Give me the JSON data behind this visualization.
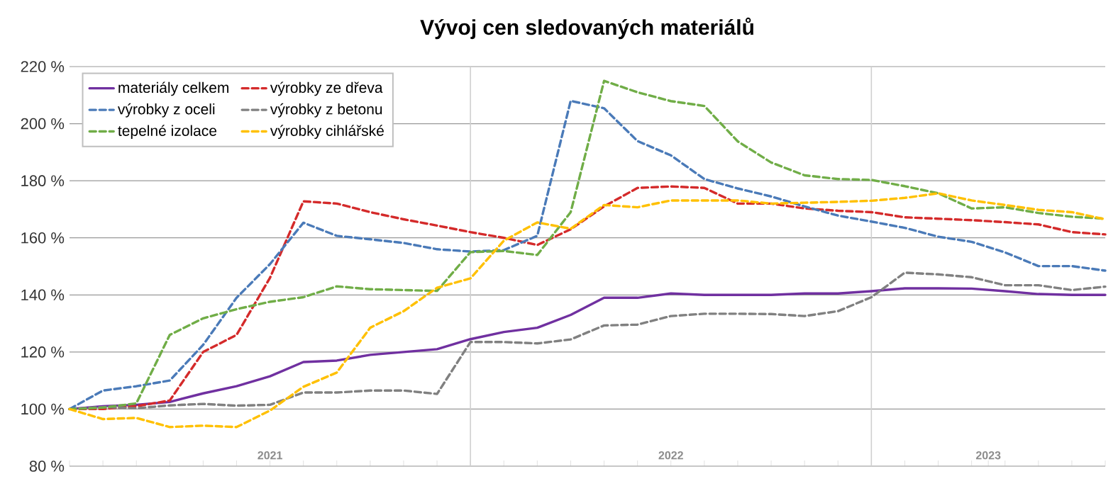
{
  "chart_data": {
    "type": "line",
    "title": "Vývoj cen sledovaných materiálů",
    "x": [
      "2021-01",
      "2021-02",
      "2021-03",
      "2021-04",
      "2021-05",
      "2021-06",
      "2021-07",
      "2021-08",
      "2021-09",
      "2021-10",
      "2021-11",
      "2021-12",
      "2022-01",
      "2022-02",
      "2022-03",
      "2022-04",
      "2022-05",
      "2022-06",
      "2022-07",
      "2022-08",
      "2022-09",
      "2022-10",
      "2022-11",
      "2022-12",
      "2023-01",
      "2023-02",
      "2023-03",
      "2023-04",
      "2023-05",
      "2023-06",
      "2023-07",
      "2023-08"
    ],
    "series": [
      {
        "name": "materiály celkem",
        "color": "#7030a0",
        "line_style": "solid",
        "values": [
          100,
          101,
          101.5,
          102.5,
          105.5,
          108,
          111.5,
          116.5,
          117,
          119,
          120,
          121,
          124.5,
          127,
          128.5,
          133,
          139,
          139,
          140.5,
          140,
          140,
          140,
          140.5,
          140.5,
          141.3,
          142.3,
          142.3,
          142.2,
          141.3,
          140.3,
          140,
          140
        ]
      },
      {
        "name": "výrobky ze dřeva",
        "color": "#d42a2a",
        "line_style": "dashed",
        "values": [
          100,
          100,
          101,
          103,
          120,
          126,
          146,
          172.8,
          172,
          169,
          166.5,
          164.3,
          162,
          160,
          157.5,
          163,
          171,
          177.5,
          178,
          177.5,
          172,
          172,
          170.3,
          169.5,
          169,
          167.2,
          166.7,
          166.2,
          165.5,
          164.7,
          162,
          161.2
        ]
      },
      {
        "name": "výrobky z oceli",
        "color": "#4a7ab8",
        "line_style": "dashed",
        "values": [
          100,
          106.5,
          108,
          110,
          122.5,
          139,
          150.8,
          165.3,
          160.7,
          159.5,
          158.2,
          156,
          155.2,
          155.7,
          160.7,
          208,
          205.4,
          193.9,
          188.9,
          180.6,
          177.3,
          174.5,
          171,
          167.8,
          165.7,
          163.5,
          160.4,
          158.6,
          154.9,
          150.1,
          150.1,
          148.5
        ]
      },
      {
        "name": "výrobky z betonu",
        "color": "#808080",
        "line_style": "dashed",
        "values": [
          100,
          100.7,
          100.3,
          101.3,
          101.8,
          101.2,
          101.5,
          105.8,
          105.8,
          106.5,
          106.5,
          105.3,
          123.5,
          123.5,
          123,
          124.4,
          129.3,
          129.6,
          132.6,
          133.4,
          133.4,
          133.3,
          132.6,
          134.3,
          139.2,
          147.8,
          147.2,
          146.2,
          143.4,
          143.4,
          141.7,
          142.9
        ]
      },
      {
        "name": "tepelné izolace",
        "color": "#70ad47",
        "line_style": "dashed",
        "values": [
          100,
          100.5,
          102,
          126,
          131.8,
          135,
          137.6,
          139.2,
          143,
          142,
          141.7,
          141.4,
          155,
          155.4,
          154,
          169,
          215,
          211,
          207.9,
          206.2,
          193.8,
          186.4,
          181.9,
          180.6,
          180.3,
          178.1,
          175.6,
          170.3,
          170.7,
          168.7,
          167.4,
          166.7
        ]
      },
      {
        "name": "výrobky cihlářské",
        "color": "#ffc000",
        "line_style": "dashed",
        "values": [
          100,
          96.5,
          96.9,
          93.7,
          94.2,
          93.7,
          99.5,
          107.8,
          112.8,
          128.5,
          134.3,
          142.5,
          145.8,
          159,
          165.4,
          163.2,
          171.5,
          170.7,
          173.1,
          173.1,
          173.1,
          172,
          172.3,
          172.6,
          173,
          174,
          175.6,
          173.1,
          171.5,
          169.8,
          169,
          166.5
        ]
      }
    ],
    "xlim": [
      "2021-01",
      "2023-08"
    ],
    "xticks": [
      {
        "value": "2021-01",
        "label": null
      },
      {
        "value": "2021-02",
        "label": null
      },
      {
        "value": "2021-03",
        "label": null
      },
      {
        "value": "2021-04",
        "label": null
      },
      {
        "value": "2021-05",
        "label": null
      },
      {
        "value": "2021-06",
        "label": null
      },
      {
        "value": "2021-07",
        "label": "2021"
      },
      {
        "value": "2021-08",
        "label": null
      },
      {
        "value": "2021-09",
        "label": null
      },
      {
        "value": "2021-10",
        "label": null
      },
      {
        "value": "2021-11",
        "label": null
      },
      {
        "value": "2021-12",
        "label": null
      },
      {
        "value": "2022-01",
        "label": null
      },
      {
        "value": "2022-02",
        "label": null
      },
      {
        "value": "2022-03",
        "label": null
      },
      {
        "value": "2022-04",
        "label": null
      },
      {
        "value": "2022-05",
        "label": null
      },
      {
        "value": "2022-06",
        "label": null
      },
      {
        "value": "2022-07",
        "label": "2022"
      },
      {
        "value": "2022-08",
        "label": null
      },
      {
        "value": "2022-09",
        "label": null
      },
      {
        "value": "2022-10",
        "label": null
      },
      {
        "value": "2022-11",
        "label": null
      },
      {
        "value": "2022-12",
        "label": null
      },
      {
        "value": "2023-01",
        "label": null
      },
      {
        "value": "2023-02",
        "label": null
      },
      {
        "value": "2023-03",
        "label": null
      },
      {
        "value": "2023-04",
        "label": null
      },
      {
        "value": "2023-04-16",
        "label": "2023"
      },
      {
        "value": "2023-05",
        "label": null
      },
      {
        "value": "2023-06",
        "label": null
      },
      {
        "value": "2023-07",
        "label": null
      },
      {
        "value": "2023-08",
        "label": null
      }
    ],
    "ylim": [
      80,
      220
    ],
    "yticks": [
      {
        "value": 80,
        "label": "80 %"
      },
      {
        "value": 100,
        "label": "100 %"
      },
      {
        "value": 120,
        "label": "120 %"
      },
      {
        "value": 140,
        "label": "140 %"
      },
      {
        "value": 160,
        "label": "160 %"
      },
      {
        "value": 180,
        "label": "180 %"
      },
      {
        "value": 200,
        "label": "200 %"
      },
      {
        "value": 220,
        "label": "220 %"
      }
    ],
    "ref_lines": [
      {
        "axis": "x",
        "value": "2022-01",
        "color": "#d0d0d0"
      },
      {
        "axis": "x",
        "value": "2023-01",
        "color": "#d0d0d0"
      }
    ],
    "grid": "y",
    "legend": "top left",
    "marker": "none"
  }
}
